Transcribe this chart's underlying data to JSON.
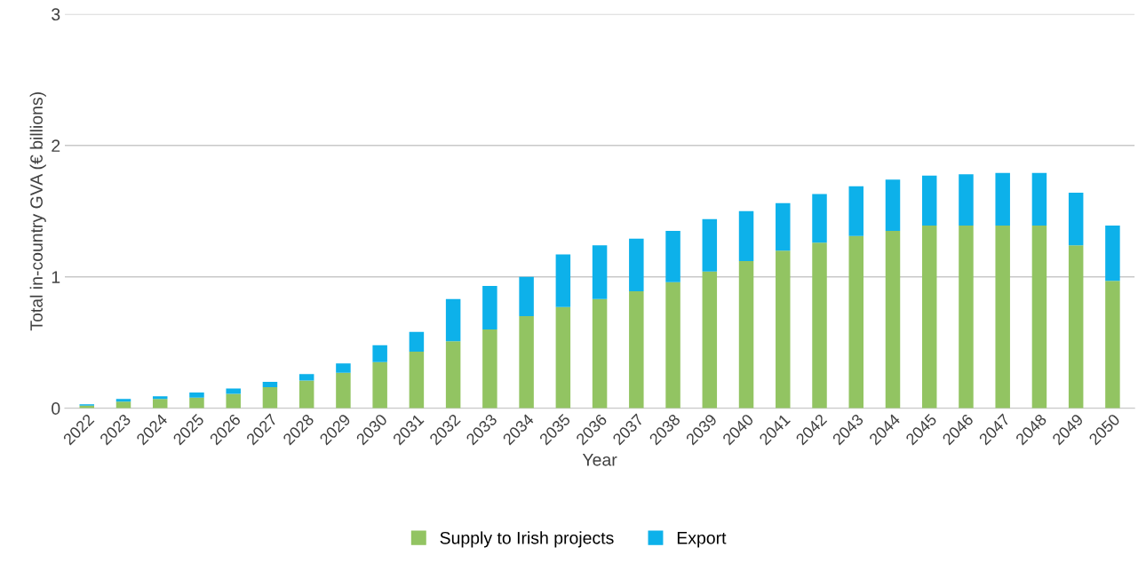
{
  "chart_data": {
    "type": "bar",
    "stacked": true,
    "xlabel": "Year",
    "ylabel": "Total in-country GVA (€ billions)",
    "categories": [
      "2022",
      "2023",
      "2024",
      "2025",
      "2026",
      "2027",
      "2028",
      "2029",
      "2030",
      "2031",
      "2032",
      "2033",
      "2034",
      "2035",
      "2036",
      "2037",
      "2038",
      "2039",
      "2040",
      "2041",
      "2042",
      "2043",
      "2044",
      "2045",
      "2046",
      "2047",
      "2048",
      "2049",
      "2050"
    ],
    "series": [
      {
        "name": "Supply to Irish projects",
        "color": "#92c462",
        "values": [
          0.02,
          0.05,
          0.07,
          0.08,
          0.11,
          0.16,
          0.21,
          0.27,
          0.35,
          0.43,
          0.51,
          0.6,
          0.7,
          0.77,
          0.83,
          0.89,
          0.96,
          1.04,
          1.12,
          1.2,
          1.26,
          1.31,
          1.35,
          1.39,
          1.39,
          1.39,
          1.39,
          1.24,
          0.97
        ]
      },
      {
        "name": "Export",
        "color": "#0db1ea",
        "values": [
          0.01,
          0.02,
          0.02,
          0.04,
          0.04,
          0.04,
          0.05,
          0.07,
          0.13,
          0.15,
          0.32,
          0.33,
          0.3,
          0.4,
          0.41,
          0.4,
          0.39,
          0.4,
          0.38,
          0.36,
          0.37,
          0.38,
          0.39,
          0.38,
          0.39,
          0.4,
          0.4,
          0.4,
          0.42
        ]
      }
    ],
    "ylim": [
      0,
      3
    ],
    "yticks": [
      0,
      1,
      2,
      3
    ],
    "grid": "y",
    "legend": "bottom"
  }
}
